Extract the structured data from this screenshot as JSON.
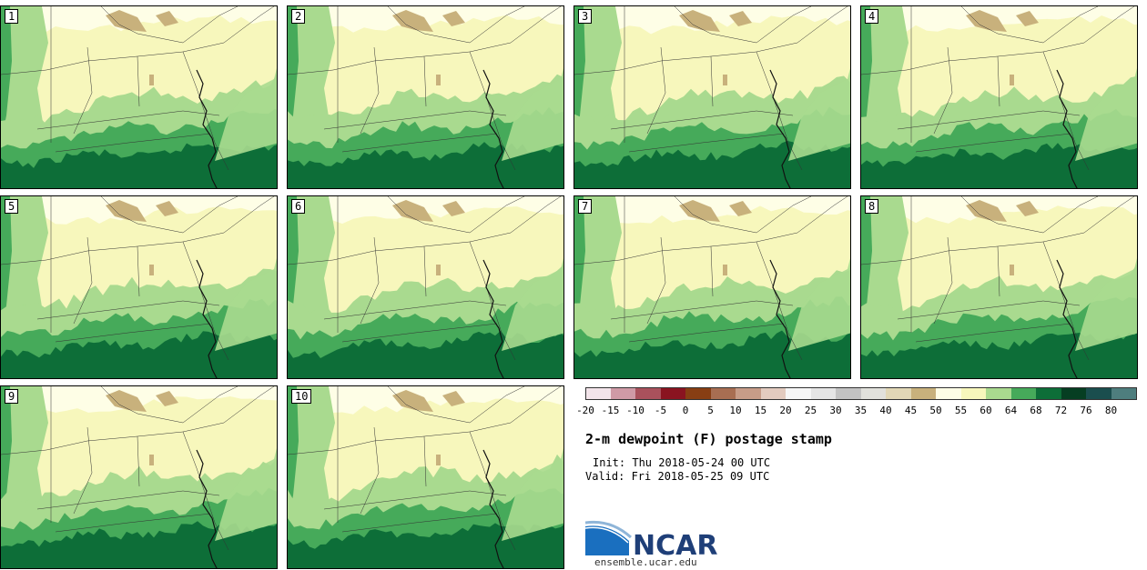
{
  "panels": [
    {
      "label": "1"
    },
    {
      "label": "2"
    },
    {
      "label": "3"
    },
    {
      "label": "4"
    },
    {
      "label": "5"
    },
    {
      "label": "6"
    },
    {
      "label": "7"
    },
    {
      "label": "8"
    },
    {
      "label": "9"
    },
    {
      "label": "10"
    }
  ],
  "colorbar": {
    "tick_labels": [
      "-20",
      "-15",
      "-10",
      "-5",
      "0",
      "5",
      "10",
      "15",
      "20",
      "25",
      "30",
      "35",
      "40",
      "45",
      "50",
      "55",
      "60",
      "64",
      "68",
      "72",
      "76",
      "80"
    ],
    "colors": [
      "#f3e4ea",
      "#cf9aa6",
      "#a9515c",
      "#8a1420",
      "#883e13",
      "#a86e52",
      "#c79c88",
      "#e3cbbf",
      "#f6f6f6",
      "#e5e5e5",
      "#c3c3c3",
      "#e1e1dc",
      "#e1d7b6",
      "#c8b17c",
      "#fefee6",
      "#f7f7bc",
      "#a9da8f",
      "#46aa5a",
      "#0d6e38",
      "#063e22",
      "#1a4e4e",
      "#4e7e7e"
    ]
  },
  "title": "2-m dewpoint (F) postage stamp",
  "init": "Init: Thu 2018-05-24 00 UTC",
  "valid": "Valid: Fri 2018-05-25 09 UTC",
  "logo": {
    "text": "NCAR",
    "site": "ensemble.ucar.edu",
    "color": "#1f3f78"
  }
}
